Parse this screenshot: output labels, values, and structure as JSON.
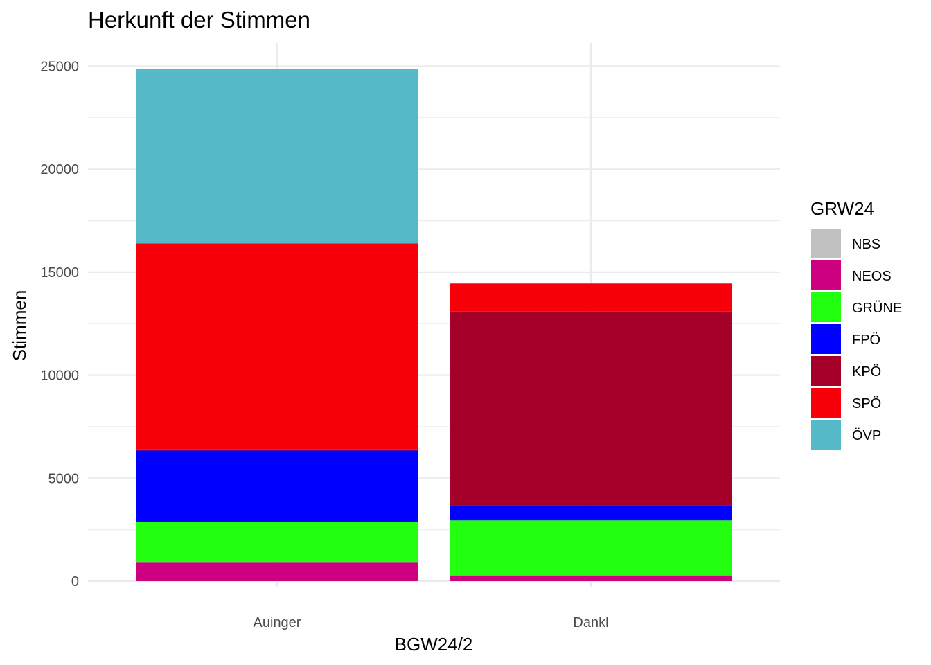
{
  "chart_data": {
    "type": "bar",
    "stacked": true,
    "title": "Herkunft der Stimmen",
    "xlabel": "BGW24/2",
    "ylabel": "Stimmen",
    "categories": [
      "Auinger",
      "Dankl"
    ],
    "ylim": [
      0,
      26000
    ],
    "yticks": [
      0,
      5000,
      10000,
      15000,
      20000,
      25000
    ],
    "grid": true,
    "legend": {
      "title": "GRW24",
      "placement": "right"
    },
    "series": [
      {
        "name": "NBS",
        "color": "#c0c0c0",
        "values": [
          0,
          0
        ]
      },
      {
        "name": "NEOS",
        "color": "#cc0080",
        "values": [
          900,
          280
        ]
      },
      {
        "name": "GRÜNE",
        "color": "#22ff0f",
        "values": [
          1980,
          2670
        ]
      },
      {
        "name": "FPÖ",
        "color": "#0000ff",
        "values": [
          3460,
          740
        ]
      },
      {
        "name": "KPÖ",
        "color": "#a5002a",
        "values": [
          60,
          9400
        ]
      },
      {
        "name": "SPÖ",
        "color": "#f7000a",
        "values": [
          10000,
          1360
        ]
      },
      {
        "name": "ÖVP",
        "color": "#56b9c8",
        "values": [
          8450,
          0
        ]
      }
    ]
  }
}
